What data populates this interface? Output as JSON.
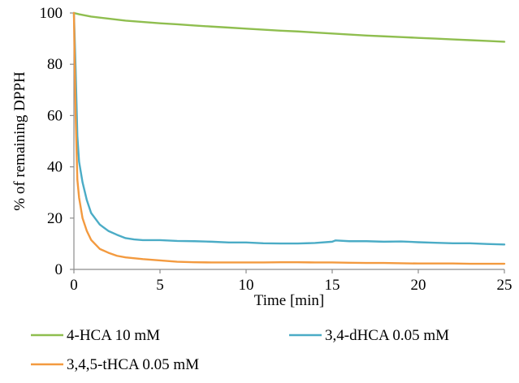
{
  "chart_data": {
    "type": "line",
    "title": "",
    "xlabel": "Time [min]",
    "ylabel": "% of remaining DPPH",
    "xlim": [
      0,
      25
    ],
    "ylim": [
      0,
      100
    ],
    "grid": false,
    "legend_position": "bottom",
    "x_ticks": [
      0,
      5,
      10,
      15,
      20,
      25
    ],
    "y_ticks": [
      0,
      20,
      40,
      60,
      80,
      100
    ],
    "series": [
      {
        "name": "4-HCA 10 mM",
        "color": "#8fbe4f",
        "x": [
          0,
          0.3,
          1,
          2,
          3,
          4,
          5,
          6,
          7,
          8,
          9,
          10,
          11,
          12,
          13,
          14,
          15,
          16,
          17,
          18,
          19,
          20,
          21,
          22,
          23,
          24,
          25
        ],
        "values": [
          100,
          99.5,
          98.6,
          97.8,
          97.0,
          96.5,
          96.0,
          95.6,
          95.1,
          94.7,
          94.3,
          93.9,
          93.5,
          93.1,
          92.8,
          92.4,
          92.0,
          91.6,
          91.2,
          90.9,
          90.6,
          90.3,
          90.0,
          89.7,
          89.4,
          89.1,
          88.8
        ]
      },
      {
        "name": "3,4-dHCA 0.05 mM",
        "color": "#4bacc6",
        "x": [
          0,
          0.1,
          0.2,
          0.3,
          0.5,
          0.75,
          1,
          1.5,
          2,
          2.5,
          3,
          3.5,
          4,
          5,
          6,
          7,
          8,
          9,
          10,
          11,
          12,
          13,
          14,
          15,
          15.2,
          16,
          17,
          18,
          19,
          20,
          21,
          22,
          23,
          24,
          25
        ],
        "values": [
          100,
          78,
          52,
          42,
          34,
          27,
          22,
          17.5,
          15,
          13.5,
          12.2,
          11.7,
          11.4,
          11.4,
          11.1,
          11.0,
          10.8,
          10.5,
          10.5,
          10.2,
          10.1,
          10.1,
          10.3,
          10.8,
          11.3,
          11.0,
          11.0,
          10.8,
          10.9,
          10.6,
          10.4,
          10.2,
          10.2,
          9.9,
          9.7
        ]
      },
      {
        "name": "3,4,5-tHCA 0.05 mM",
        "color": "#f39a3f",
        "x": [
          0,
          0.1,
          0.2,
          0.3,
          0.5,
          0.75,
          1,
          1.5,
          2,
          2.5,
          3,
          4,
          5,
          6,
          7,
          8,
          9,
          10,
          11,
          12,
          13,
          14,
          15,
          16,
          17,
          18,
          19,
          20,
          21,
          22,
          23,
          24,
          25
        ],
        "values": [
          100,
          60,
          35,
          28,
          20,
          15,
          11.5,
          8,
          6.5,
          5.3,
          4.7,
          4.0,
          3.5,
          3.0,
          2.8,
          2.7,
          2.7,
          2.7,
          2.7,
          2.8,
          2.8,
          2.7,
          2.7,
          2.6,
          2.5,
          2.5,
          2.4,
          2.3,
          2.3,
          2.3,
          2.2,
          2.2,
          2.2
        ]
      }
    ]
  }
}
